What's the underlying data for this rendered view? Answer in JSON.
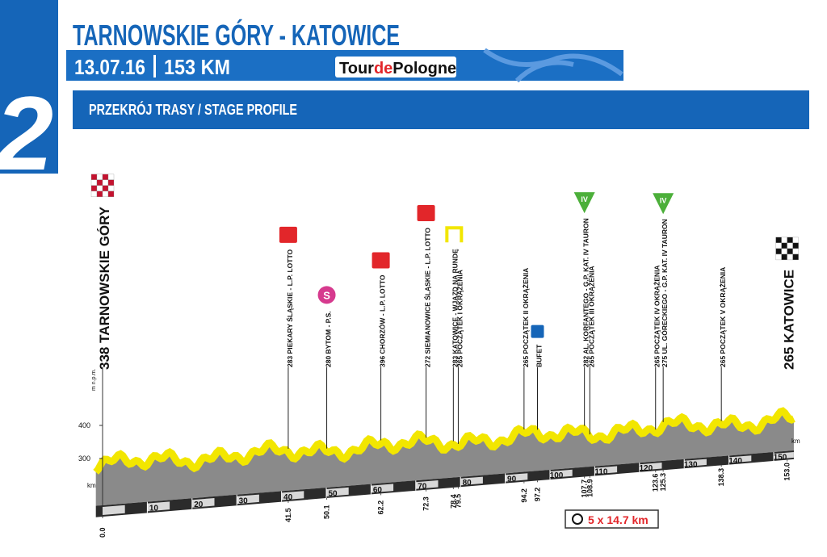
{
  "stage_number": "2",
  "header": {
    "title": "TARNOWSKIE GÓRY - KATOWICE",
    "date": "13.07.16",
    "distance": "153 KM",
    "logo_tour": "Tour",
    "logo_de": "de",
    "logo_pologne": "Pologne"
  },
  "section_title": "PRZEKRÓJ TRASY / STAGE PROFILE",
  "profile": {
    "elevation_unit": "m n.p.m.",
    "distance_unit": "km",
    "yticks": [
      300,
      400
    ],
    "xticks": [
      10,
      20,
      30,
      40,
      50,
      60,
      70,
      80,
      90,
      100,
      110,
      120,
      130,
      140,
      150
    ],
    "start": {
      "km": {
        "value": 0,
        "label": "0.0"
      },
      "label": "338 TARNOWSKIE GÓRY"
    },
    "finish": {
      "km": {
        "value": 153,
        "label": "153.0"
      },
      "label": "265 KATOWICE"
    },
    "waypoints": [
      {
        "km": 41.5,
        "label": "283 PIEKARY ŚLĄSKIE - L.P. LOTTO",
        "marker": {
          "kind": "sprint"
        }
      },
      {
        "km": 50.1,
        "label": "280 BYTOM - P.S.",
        "marker": {
          "kind": "special",
          "label": "S"
        }
      },
      {
        "km": 62.2,
        "label": "396 CHORZÓW - L.P. LOTTO",
        "marker": {
          "kind": "sprint"
        }
      },
      {
        "km": 72.3,
        "label": "272 SIEMIANOWICE ŚLĄSKIE - L.P. LOTTO",
        "marker": {
          "kind": "sprint"
        }
      },
      {
        "km": 78.4,
        "label": "283 KATOWICE - WJAZD NA RUNDĘ",
        "marker": {
          "kind": "circuit"
        }
      },
      {
        "km": 79.5,
        "label": "265 POCZĄTEK I OKRĄŻENIA"
      },
      {
        "km": 94.2,
        "label": "265 POCZĄTEK II OKRĄŻENIA"
      },
      {
        "km": 97.2,
        "label": "BUFET",
        "marker": {
          "kind": "feed"
        }
      },
      {
        "km": 107.7,
        "label": "282 AL. KORFANTEGO - G.P. KAT. IV TAURON",
        "marker": {
          "kind": "kom",
          "label": "IV"
        }
      },
      {
        "km": 108.9,
        "label": "265 POCZĄTEK III OKRĄŻENIA"
      },
      {
        "km": 123.6,
        "label": "265 POCZĄTEK IV OKRĄŻENIA"
      },
      {
        "km": 125.3,
        "label": "275 UL. GÓRECKIEGO - G.P. KAT. IV TAURON",
        "marker": {
          "kind": "kom",
          "label": "IV"
        }
      },
      {
        "km": 138.3,
        "label": "265 POCZĄTEK V OKRĄŻENIA"
      }
    ],
    "circuit": "5 x 14.7 km"
  }
}
